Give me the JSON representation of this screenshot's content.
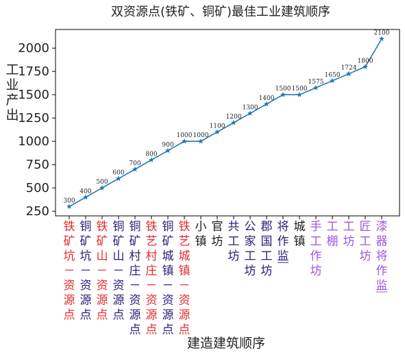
{
  "chart_data": {
    "type": "line",
    "title": "双资源点(铁矿、铜矿)最佳工业建筑顺序",
    "xlabel": "建造建筑顺序",
    "ylabel": "工业产出",
    "ylim": [
      200,
      2200
    ],
    "yticks": [
      250,
      500,
      750,
      1000,
      1250,
      1500,
      1750,
      2000
    ],
    "categories": [
      "铁矿坑－资源点",
      "铜矿坑－资源点",
      "铁矿山－资源点",
      "铜矿山－资源点",
      "铜矿村庄－资源点",
      "铁艺村庄－资源点",
      "铜矿城镇－资源点",
      "铁艺城镇－资源点",
      "小镇",
      "官坊",
      "共工坊",
      "公家工坊",
      "郡国工坊",
      "将作监",
      "城镇",
      "手工作坊",
      "工棚",
      "工坊",
      "匠工坊",
      "漆器将作监"
    ],
    "category_colors": [
      "#e8292b",
      "#27207a",
      "#e8292b",
      "#27207a",
      "#27207a",
      "#e8292b",
      "#27207a",
      "#e8292b",
      "#1a1a1a",
      "#1a1a1a",
      "#27207a",
      "#27207a",
      "#27207a",
      "#27207a",
      "#1a1a1a",
      "#9a57e0",
      "#9a57e0",
      "#9a57e0",
      "#9a57e0",
      "#9a57e0"
    ],
    "underlined": [
      13,
      19
    ],
    "values": [
      300,
      400,
      500,
      600,
      700,
      800,
      900,
      1000,
      1000,
      1100,
      1200,
      1300,
      1400,
      1500,
      1500,
      1575,
      1650,
      1724,
      1800,
      2100
    ],
    "line_color": "#1f77b4",
    "marker": "star",
    "grid": false
  }
}
